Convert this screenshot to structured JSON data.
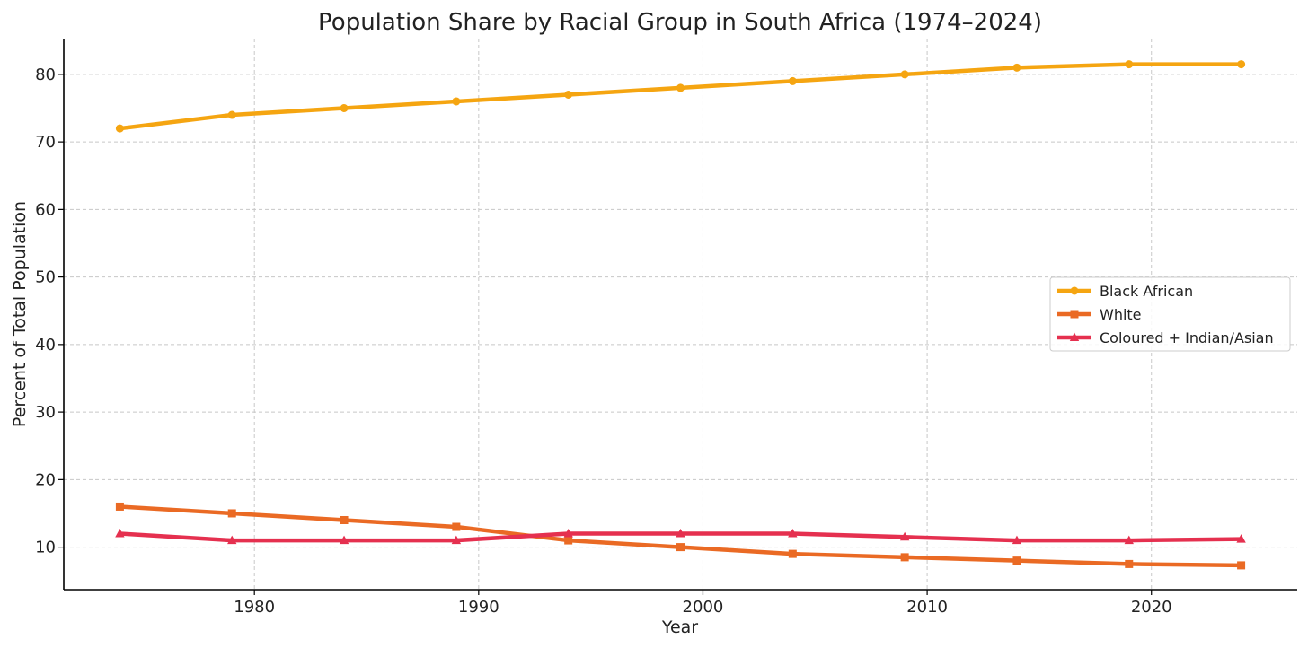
{
  "chart_data": {
    "type": "line",
    "title": "Population Share by Racial Group in South Africa (1974–2024)",
    "xlabel": "Year",
    "ylabel": "Percent of Total Population",
    "xlim": [
      1971.5,
      2026.5
    ],
    "ylim": [
      3.7,
      85.3
    ],
    "x_ticks": [
      1980,
      1990,
      2000,
      2010,
      2020
    ],
    "y_ticks": [
      10,
      20,
      30,
      40,
      50,
      60,
      70,
      80
    ],
    "grid": true,
    "legend_position": "center-right",
    "x": [
      1974,
      1979,
      1984,
      1989,
      1994,
      1999,
      2004,
      2009,
      2014,
      2019,
      2024
    ],
    "series": [
      {
        "name": "Black African",
        "color": "#f5a511",
        "marker": "circle",
        "values": [
          72,
          74,
          75,
          76,
          77,
          78,
          79,
          80,
          81,
          81.5,
          81.5
        ]
      },
      {
        "name": "White",
        "color": "#ea6a24",
        "marker": "square",
        "values": [
          16,
          15,
          14,
          13,
          11,
          10,
          9,
          8.5,
          8,
          7.5,
          7.3
        ]
      },
      {
        "name": "Coloured + Indian/Asian",
        "color": "#e5304f",
        "marker": "triangle",
        "values": [
          12,
          11,
          11,
          11,
          12,
          12,
          12,
          11.5,
          11,
          11,
          11.2
        ]
      }
    ]
  }
}
